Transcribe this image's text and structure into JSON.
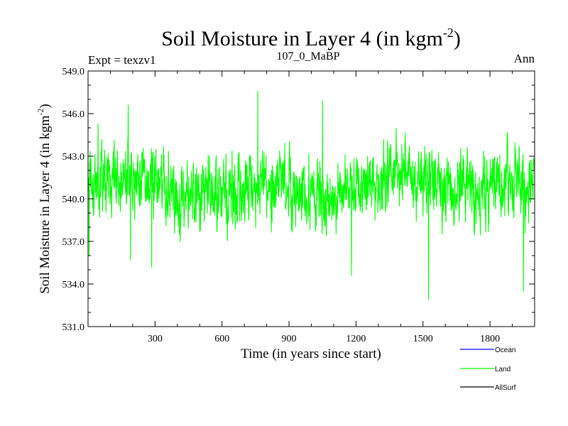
{
  "chart_data": {
    "type": "line",
    "title": "Soil Moisture in Layer 4 (in kgm",
    "title_sup": "-2",
    "title_end": ")",
    "subtitle_left": "Expt = texzv1",
    "subtitle_center": "107_0_MaBP",
    "subtitle_right": "Ann",
    "xlabel": "Time (in years since start)",
    "ylabel": "Soil Moisture in Layer 4 (in kgm",
    "ylabel_sup": "-2",
    "ylabel_end": ")",
    "xlim": [
      0,
      2000
    ],
    "ylim": [
      531.0,
      549.0
    ],
    "xticks": [
      300,
      600,
      900,
      1200,
      1500,
      1800
    ],
    "yticks": [
      "531.0",
      "534.0",
      "537.0",
      "540.0",
      "543.0",
      "546.0",
      "549.0"
    ],
    "legend": [
      {
        "name": "Ocean",
        "color": "#0000ff"
      },
      {
        "name": "Land",
        "color": "#00ff00"
      },
      {
        "name": "AllSurf",
        "color": "#000000"
      }
    ],
    "series": [
      {
        "name": "Land",
        "color": "#00ff00",
        "mean": 540.8,
        "x_step": 1,
        "x_start": 1,
        "n_points": 2000,
        "envelope_note": "annual values fluctuating roughly between 533 and 547",
        "anchor_points": [
          {
            "x": 5,
            "y": 536.0
          },
          {
            "x": 45,
            "y": 545.3
          },
          {
            "x": 180,
            "y": 546.6
          },
          {
            "x": 190,
            "y": 535.7
          },
          {
            "x": 285,
            "y": 535.2
          },
          {
            "x": 760,
            "y": 547.6
          },
          {
            "x": 1050,
            "y": 546.9
          },
          {
            "x": 1180,
            "y": 534.6
          },
          {
            "x": 1525,
            "y": 532.9
          },
          {
            "x": 1950,
            "y": 533.5
          }
        ]
      },
      {
        "name": "Ocean",
        "color": "#0000ff",
        "values": []
      },
      {
        "name": "AllSurf",
        "color": "#000000",
        "values": []
      }
    ]
  }
}
